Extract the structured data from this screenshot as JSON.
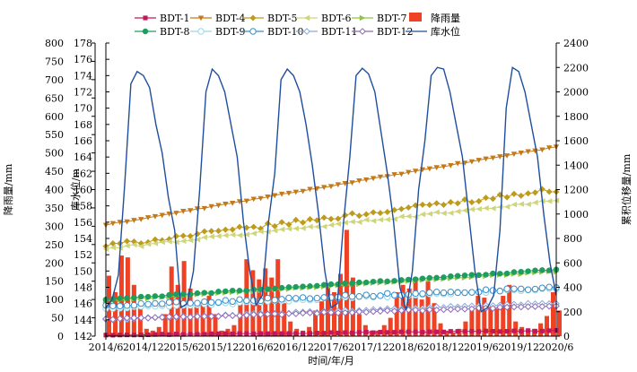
{
  "chart_data": {
    "type": "line",
    "xlabel": "时间/年/月",
    "x_ticks": [
      "2014/6",
      "2014/12",
      "2015/6",
      "2015/12",
      "2016/6",
      "2016/12",
      "2017/6",
      "2017/12",
      "2018/6",
      "2018/12",
      "2019/6",
      "2019/12",
      "2020/6"
    ],
    "x_range": [
      "2014/6",
      "2020/6"
    ],
    "axes": {
      "rain": {
        "label": "降雨量/mm",
        "side": "left-outer",
        "range": [
          0,
          800
        ],
        "ticks": [
          0,
          50,
          100,
          150,
          200,
          250,
          300,
          350,
          400,
          450,
          500,
          550,
          600,
          650,
          700,
          750,
          800
        ]
      },
      "water": {
        "label": "库水位/m",
        "side": "left-inner",
        "range": [
          142,
          178
        ],
        "ticks": [
          142,
          144,
          146,
          148,
          150,
          152,
          154,
          156,
          158,
          160,
          162,
          164,
          166,
          168,
          170,
          172,
          174,
          176,
          178
        ]
      },
      "disp": {
        "label": "累积位移量/mm",
        "side": "right",
        "range": [
          0,
          2400
        ],
        "ticks": [
          0,
          200,
          400,
          600,
          800,
          1000,
          1200,
          1400,
          1600,
          1800,
          2000,
          2200,
          2400
        ]
      }
    },
    "grid": false,
    "legend_position": "top",
    "series": [
      {
        "name": "BDT-1",
        "axis": "disp",
        "kind": "line",
        "marker": "square",
        "color": "#c2185b",
        "start": 10,
        "end": 45,
        "noise": 3
      },
      {
        "name": "BDT-4",
        "axis": "disp",
        "kind": "line",
        "marker": "triangle-down",
        "color": "#c47a1a",
        "start": 910,
        "end": 1550,
        "noise": 4
      },
      {
        "name": "BDT-5",
        "axis": "disp",
        "kind": "line",
        "marker": "diamond",
        "color": "#bf9b1c",
        "start": 740,
        "end": 1200,
        "noise": 18
      },
      {
        "name": "BDT-6",
        "axis": "disp",
        "kind": "line",
        "marker": "triangle-left",
        "color": "#cfd67a",
        "start": 715,
        "end": 1110,
        "noise": 10
      },
      {
        "name": "BDT-7",
        "axis": "disp",
        "kind": "line",
        "marker": "triangle-right",
        "color": "#8dc63f",
        "start": 290,
        "end": 530,
        "noise": 4
      },
      {
        "name": "降雨量",
        "axis": "rain",
        "kind": "bar",
        "color": "#ef4123",
        "months": [
          "2014/6",
          "2014/7",
          "2014/8",
          "2014/9",
          "2014/10",
          "2014/11",
          "2014/12",
          "2015/1",
          "2015/2",
          "2015/3",
          "2015/4",
          "2015/5",
          "2015/6",
          "2015/7",
          "2015/8",
          "2015/9",
          "2015/10",
          "2015/11",
          "2015/12",
          "2016/1",
          "2016/2",
          "2016/3",
          "2016/4",
          "2016/5",
          "2016/6",
          "2016/7",
          "2016/8",
          "2016/9",
          "2016/10",
          "2016/11",
          "2016/12",
          "2017/1",
          "2017/2",
          "2017/3",
          "2017/4",
          "2017/5",
          "2017/6",
          "2017/7",
          "2017/8",
          "2017/9",
          "2017/10",
          "2017/11",
          "2017/12",
          "2018/1",
          "2018/2",
          "2018/3",
          "2018/4",
          "2018/5",
          "2018/6",
          "2018/7",
          "2018/8",
          "2018/9",
          "2018/10",
          "2018/11",
          "2018/12",
          "2019/1",
          "2019/2",
          "2019/3",
          "2019/4",
          "2019/5",
          "2019/6",
          "2019/7",
          "2019/8",
          "2019/9",
          "2019/10",
          "2019/11",
          "2019/12",
          "2020/1",
          "2020/2",
          "2020/3",
          "2020/4",
          "2020/5",
          "2020/6"
        ],
        "values": [
          165,
          120,
          220,
          215,
          140,
          75,
          20,
          15,
          25,
          60,
          190,
          140,
          205,
          130,
          80,
          90,
          110,
          60,
          15,
          20,
          30,
          90,
          210,
          180,
          155,
          185,
          160,
          210,
          90,
          40,
          20,
          15,
          25,
          70,
          95,
          145,
          120,
          170,
          290,
          160,
          60,
          30,
          15,
          15,
          30,
          50,
          120,
          140,
          130,
          155,
          100,
          150,
          90,
          35,
          15,
          10,
          20,
          40,
          70,
          110,
          105,
          80,
          75,
          110,
          140,
          40,
          25,
          15,
          20,
          35,
          55,
          120,
          70
        ]
      },
      {
        "name": "BDT-8",
        "axis": "disp",
        "kind": "line",
        "marker": "circle-filled",
        "color": "#1e9e5e",
        "start": 300,
        "end": 545,
        "noise": 5
      },
      {
        "name": "BDT-9",
        "axis": "disp",
        "kind": "line",
        "marker": "circle-open",
        "color": "#9cd8e8",
        "start": 225,
        "end": 390,
        "noise": 8
      },
      {
        "name": "BDT-10",
        "axis": "disp",
        "kind": "line",
        "marker": "circle-open",
        "color": "#3b8fc6",
        "start": 250,
        "end": 395,
        "noise": 10
      },
      {
        "name": "BDT-11",
        "axis": "disp",
        "kind": "line",
        "marker": "diamond-open",
        "color": "#8aa9d8",
        "start": 135,
        "end": 270,
        "noise": 6
      },
      {
        "name": "BDT-12",
        "axis": "disp",
        "kind": "line",
        "marker": "diamond-open",
        "color": "#8e6bb8",
        "start": 140,
        "end": 245,
        "noise": 5
      },
      {
        "name": "库水位",
        "axis": "water",
        "kind": "line",
        "color": "#1f4e9c",
        "values": [
          145.5,
          146.5,
          149.5,
          160.5,
          173.0,
          174.5,
          174.0,
          172.5,
          168.0,
          164.5,
          159.0,
          155.0,
          145.5,
          146.0,
          150.0,
          160.0,
          172.0,
          174.8,
          174.0,
          172.0,
          168.0,
          164.0,
          156.0,
          150.0,
          145.8,
          147.0,
          156.0,
          162.0,
          173.5,
          174.8,
          174.0,
          172.0,
          168.0,
          163.0,
          157.0,
          150.0,
          145.5,
          146.0,
          156.0,
          164.0,
          174.0,
          174.9,
          174.2,
          172.0,
          167.0,
          162.0,
          156.0,
          148.0,
          145.2,
          150.0,
          160.0,
          166.0,
          174.0,
          175.0,
          174.8,
          172.0,
          168.0,
          164.0,
          157.0,
          150.0,
          145.0,
          145.5,
          147.0,
          155.0,
          170.0,
          175.0,
          174.5,
          172.0,
          168.0,
          164.0,
          157.0,
          151.0,
          147.0
        ]
      }
    ]
  }
}
